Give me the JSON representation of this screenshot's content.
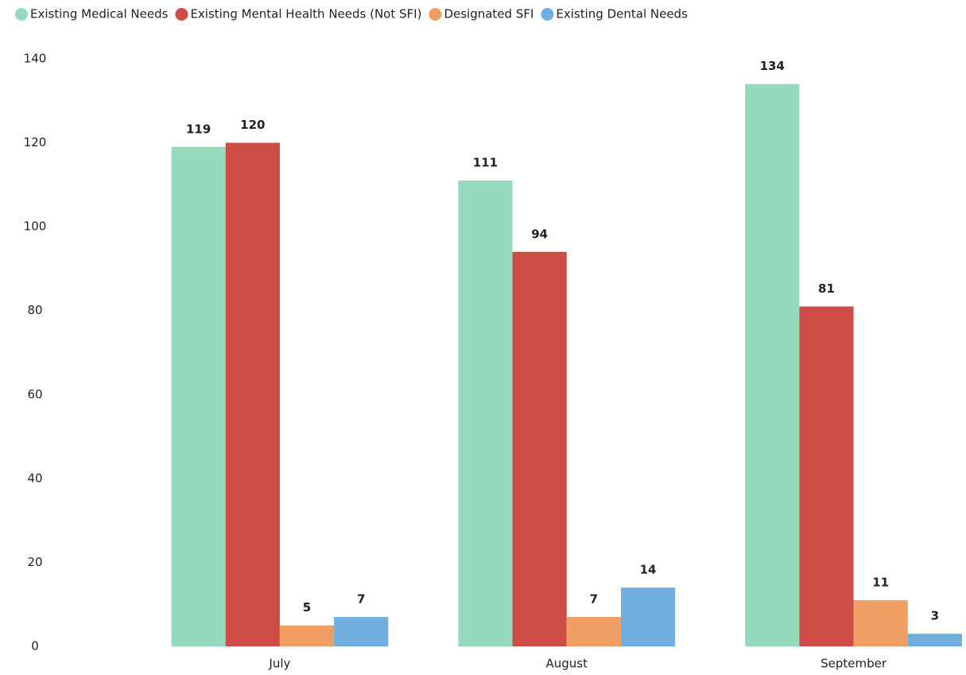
{
  "chart_data": {
    "type": "bar",
    "categories": [
      "July",
      "August",
      "September"
    ],
    "series": [
      {
        "name": "Existing Medical Needs",
        "color": "#96dabd",
        "values": [
          119,
          111,
          134
        ]
      },
      {
        "name": "Existing Mental Health Needs (Not SFI)",
        "color": "#cd4c46",
        "values": [
          120,
          94,
          81
        ]
      },
      {
        "name": "Designated SFI",
        "color": "#f09e63",
        "values": [
          5,
          7,
          11
        ]
      },
      {
        "name": "Existing Dental Needs",
        "color": "#71aee0",
        "values": [
          7,
          14,
          3
        ]
      }
    ],
    "ylim": [
      0,
      140
    ],
    "yticks": [
      0,
      20,
      40,
      60,
      80,
      100,
      120,
      140
    ],
    "grid": false,
    "legend": "top-left"
  }
}
